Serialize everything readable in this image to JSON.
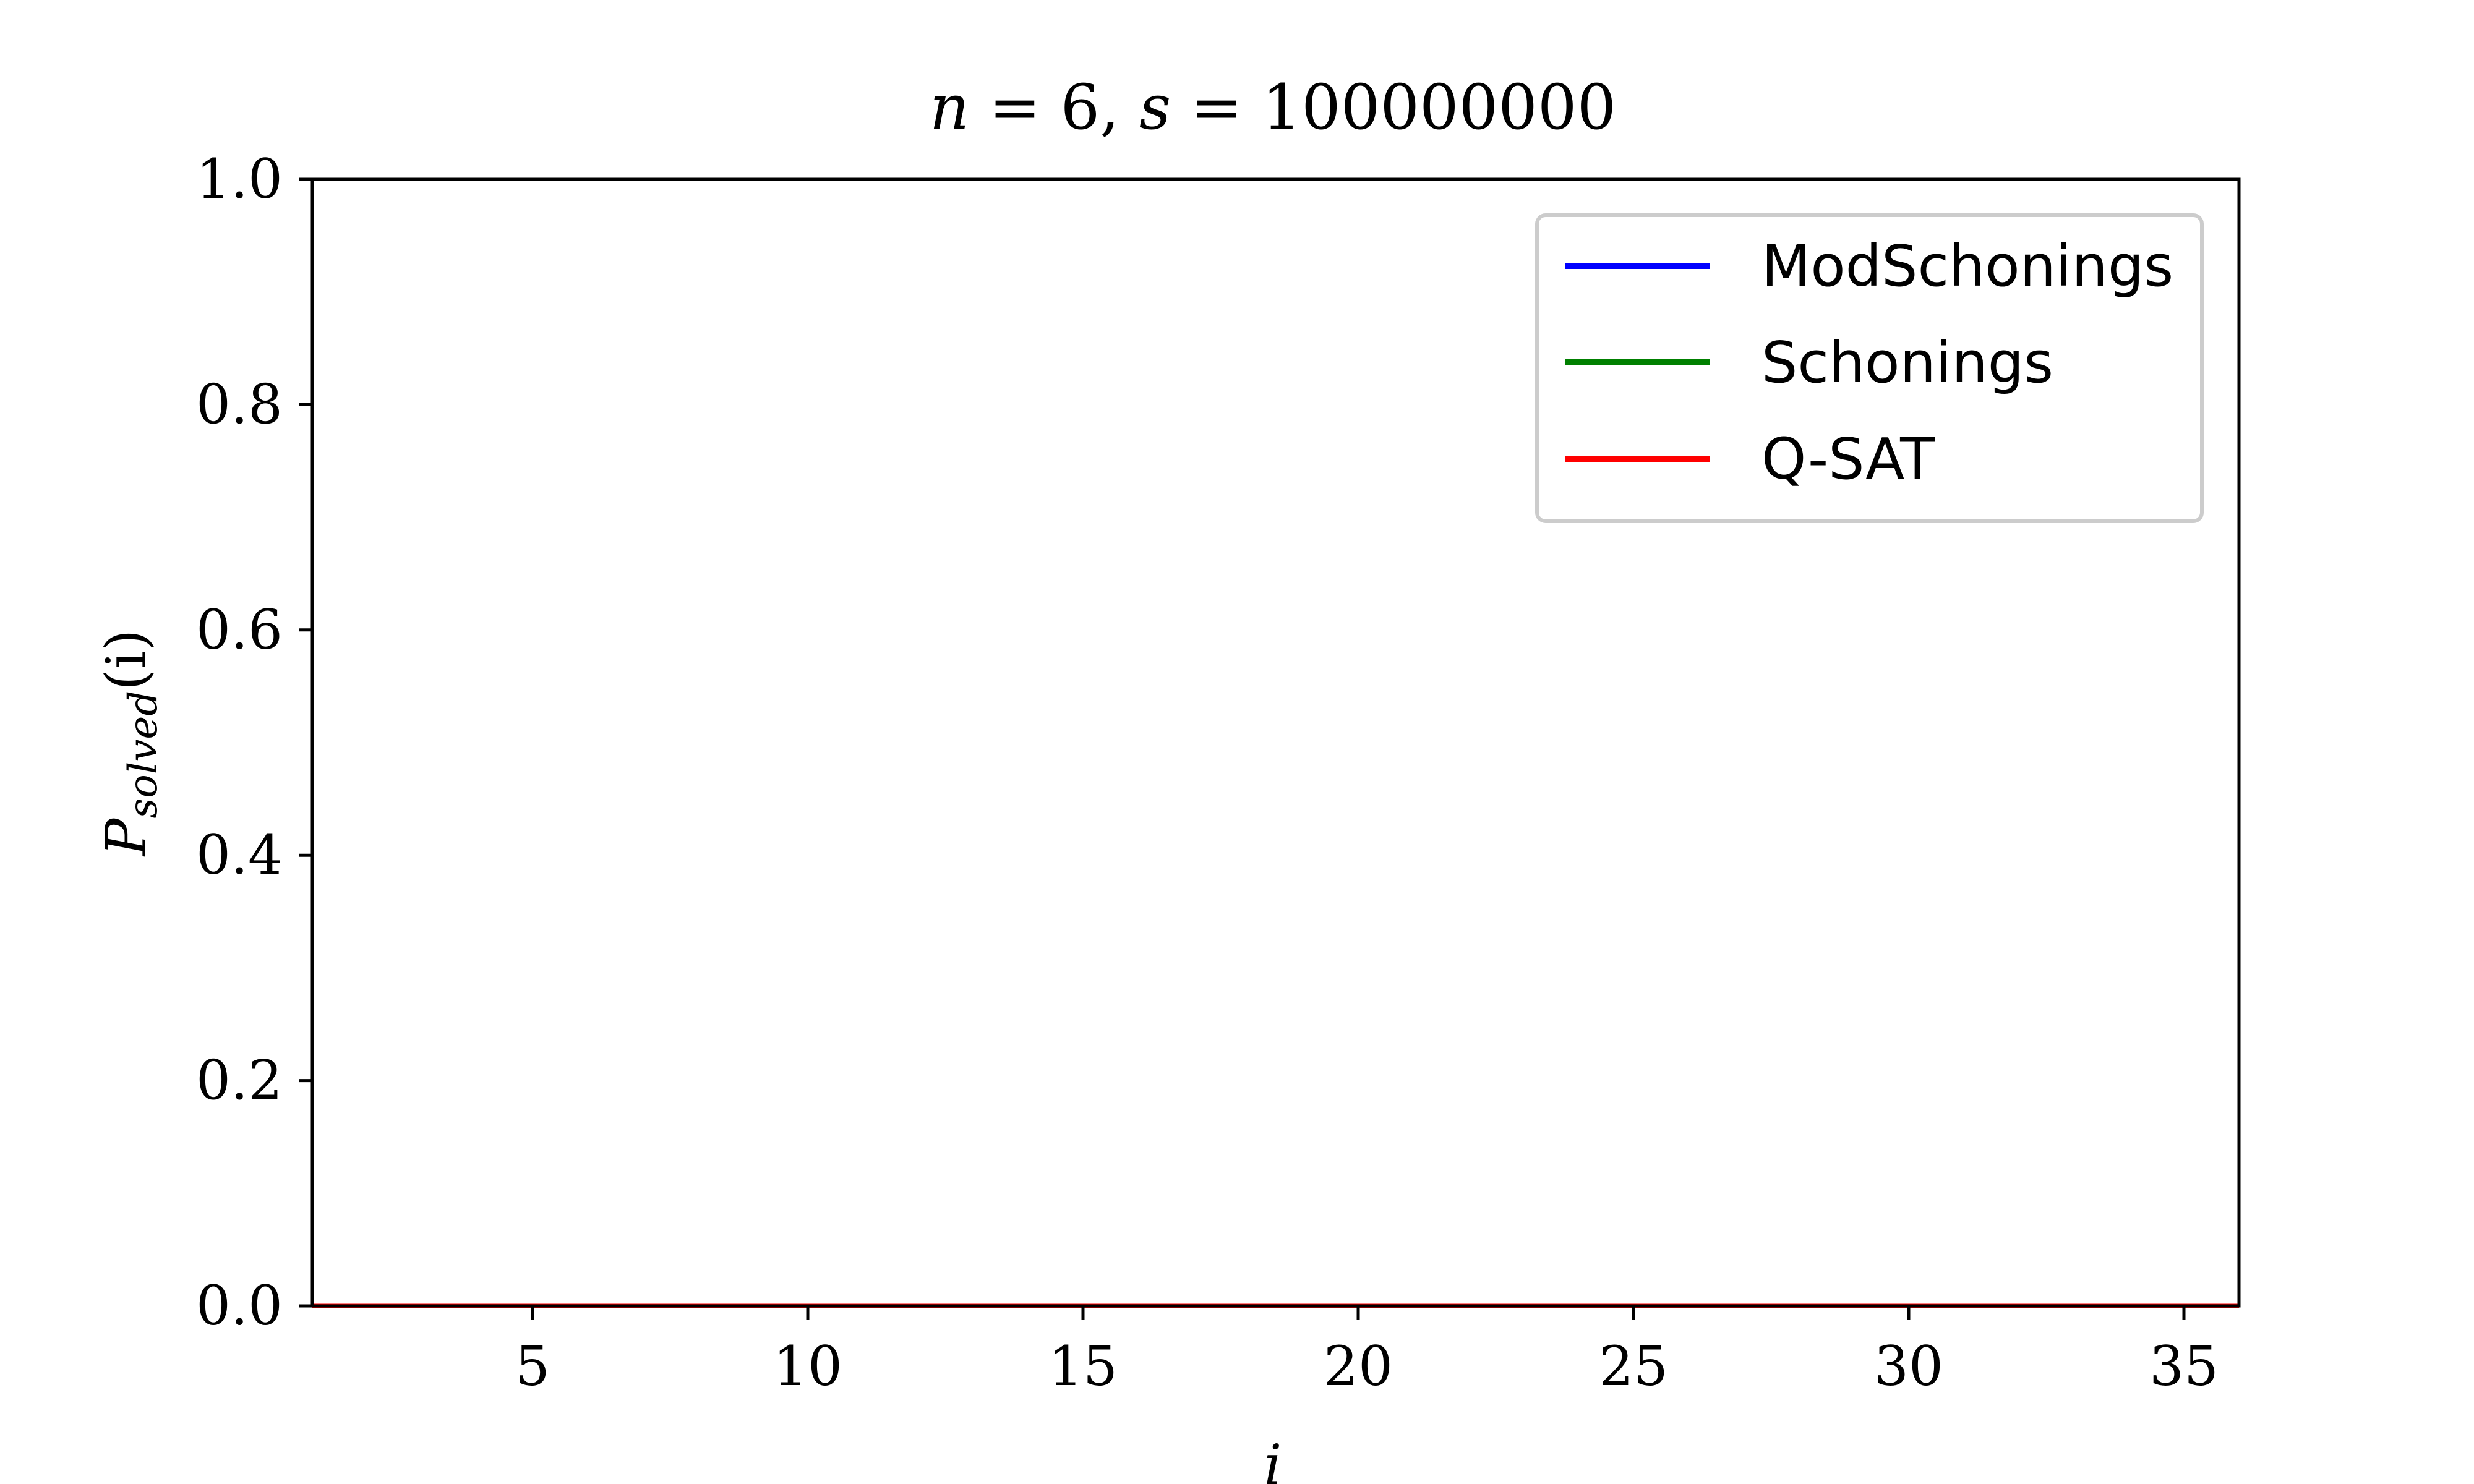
{
  "chart_data": {
    "type": "line",
    "title_parts": {
      "n_var": "n",
      "n_eq": " = 6, ",
      "s_var": "s",
      "s_eq": " = 100000000"
    },
    "xlabel": "i",
    "ylabel_main": "P",
    "ylabel_sub": "solved",
    "ylabel_arg": "(i)",
    "xlim": [
      1,
      36
    ],
    "ylim": [
      0.0,
      1.0
    ],
    "xticks": [
      5,
      10,
      15,
      20,
      25,
      30,
      35
    ],
    "xtick_labels": [
      "5",
      "10",
      "15",
      "20",
      "25",
      "30",
      "35"
    ],
    "yticks": [
      0.0,
      0.2,
      0.4,
      0.6,
      0.8,
      1.0
    ],
    "ytick_labels": [
      "0.0",
      "0.2",
      "0.4",
      "0.6",
      "0.8",
      "1.0"
    ],
    "grid": false,
    "legend_position": "top-right",
    "series": [
      {
        "name": "ModSchonings",
        "color": "#0000ff",
        "x": [
          1,
          36
        ],
        "values": [
          0.0,
          0.0
        ]
      },
      {
        "name": "Schonings",
        "color": "#008000",
        "x": [
          1,
          36
        ],
        "values": [
          0.0,
          0.0
        ]
      },
      {
        "name": "Q-SAT",
        "color": "#ff0000",
        "x": [
          1,
          36
        ],
        "values": [
          0.0,
          0.0
        ]
      }
    ]
  }
}
